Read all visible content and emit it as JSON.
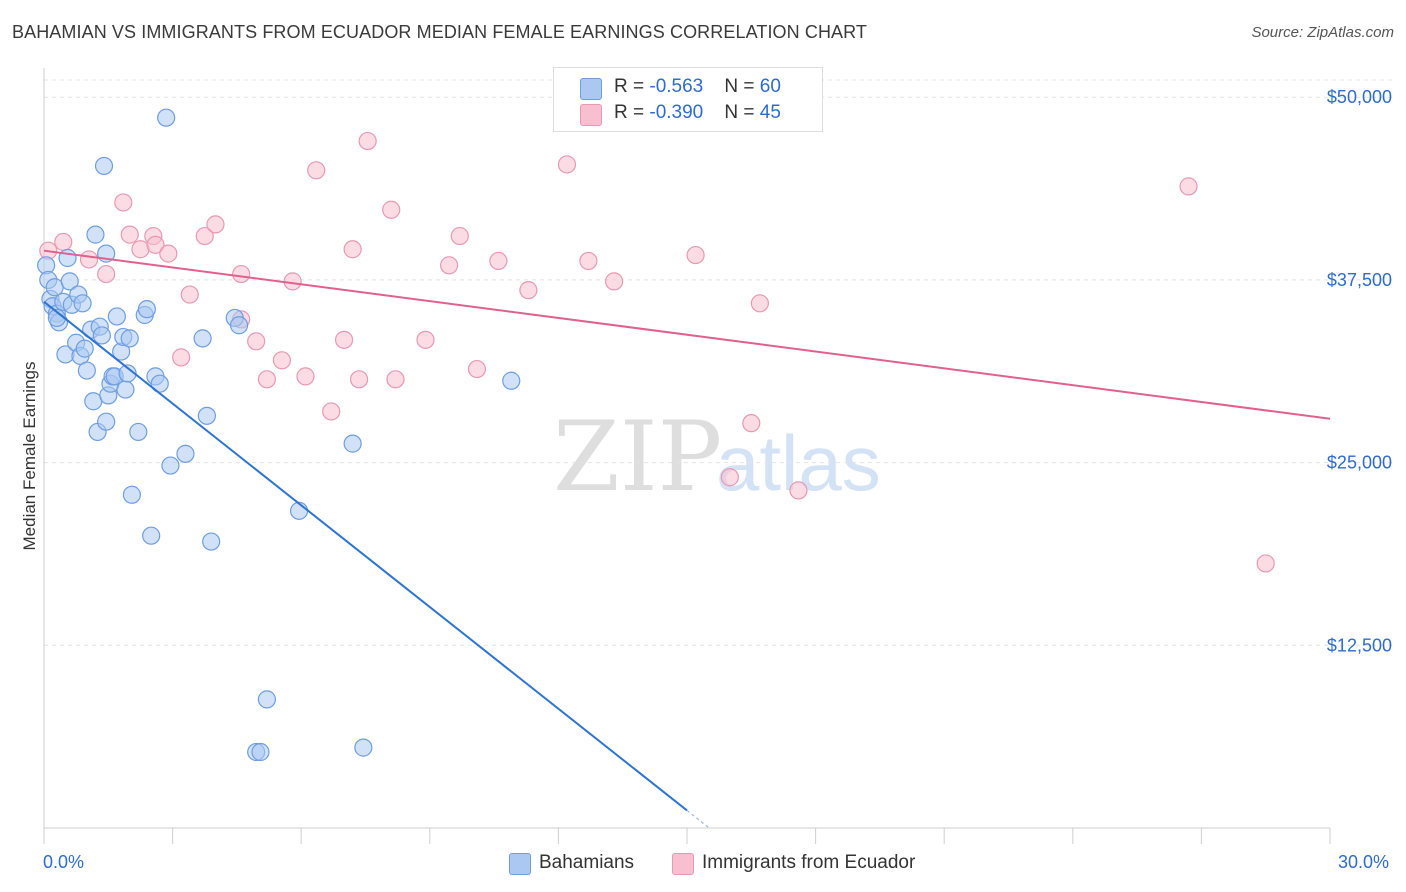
{
  "title": "BAHAMIAN VS IMMIGRANTS FROM ECUADOR MEDIAN FEMALE EARNINGS CORRELATION CHART",
  "source": "Source: ZipAtlas.com",
  "watermark": {
    "zip": "ZIP",
    "atlas": "atlas"
  },
  "legend": {
    "series1": {
      "r_label": "R = ",
      "r_value": "-0.563",
      "n_label": "N = ",
      "n_value": "60"
    },
    "series2": {
      "r_label": "R = ",
      "r_value": "-0.390",
      "n_label": "N = ",
      "n_value": "45"
    }
  },
  "bottom_legend": {
    "series1": "Bahamians",
    "series2": "Immigrants from Ecuador"
  },
  "x_axis": {
    "min_label": "0.0%",
    "max_label": "30.0%"
  },
  "chart_data": {
    "type": "scatter",
    "title": "BAHAMIAN VS IMMIGRANTS FROM ECUADOR MEDIAN FEMALE EARNINGS CORRELATION CHART",
    "xlabel": "",
    "ylabel": "Median Female Earnings",
    "xlim": [
      0,
      30
    ],
    "ylim": [
      0,
      52000
    ],
    "x_unit": "%",
    "y_ticks": [
      12500,
      25000,
      37500,
      50000
    ],
    "y_tick_labels": [
      "$12,500",
      "$25,000",
      "$37,500",
      "$50,000"
    ],
    "grid": true,
    "legend_position": "top-center",
    "colors": {
      "series1_fill": "#aac8f2",
      "series1_stroke": "#6f9ee0",
      "series1_line": "#2f74d0",
      "series2_fill": "#f7bfd0",
      "series2_stroke": "#e899b3",
      "series2_line": "#e0608e",
      "axis_label": "#2f6bcf"
    },
    "series": [
      {
        "name": "Bahamians",
        "trend": {
          "x0": 0.0,
          "y0": 36000,
          "x1": 15.0,
          "y1": 1200
        },
        "points": [
          [
            0.05,
            38500
          ],
          [
            0.1,
            37500
          ],
          [
            0.15,
            36200
          ],
          [
            0.2,
            35700
          ],
          [
            0.25,
            37000
          ],
          [
            0.3,
            35200
          ],
          [
            0.35,
            34600
          ],
          [
            0.45,
            36000
          ],
          [
            0.5,
            32400
          ],
          [
            0.55,
            39000
          ],
          [
            0.6,
            37400
          ],
          [
            0.65,
            35800
          ],
          [
            0.75,
            33200
          ],
          [
            0.8,
            36500
          ],
          [
            0.85,
            32300
          ],
          [
            0.9,
            35900
          ],
          [
            0.95,
            32800
          ],
          [
            1.0,
            31300
          ],
          [
            1.1,
            34100
          ],
          [
            1.15,
            29200
          ],
          [
            1.2,
            40600
          ],
          [
            1.25,
            27100
          ],
          [
            1.3,
            34300
          ],
          [
            1.35,
            33700
          ],
          [
            1.4,
            45300
          ],
          [
            1.45,
            27800
          ],
          [
            1.5,
            29600
          ],
          [
            1.55,
            30400
          ],
          [
            1.6,
            30900
          ],
          [
            1.65,
            30900
          ],
          [
            1.7,
            35000
          ],
          [
            1.8,
            32600
          ],
          [
            1.85,
            33600
          ],
          [
            1.9,
            30000
          ],
          [
            1.95,
            31100
          ],
          [
            2.0,
            33500
          ],
          [
            2.05,
            22800
          ],
          [
            2.2,
            27100
          ],
          [
            2.35,
            35100
          ],
          [
            2.4,
            35500
          ],
          [
            2.5,
            20000
          ],
          [
            2.6,
            30900
          ],
          [
            2.7,
            30400
          ],
          [
            2.85,
            48600
          ],
          [
            2.95,
            24800
          ],
          [
            3.3,
            25600
          ],
          [
            3.7,
            33500
          ],
          [
            3.8,
            28200
          ],
          [
            3.9,
            19600
          ],
          [
            4.45,
            34900
          ],
          [
            4.55,
            34400
          ],
          [
            4.95,
            5200
          ],
          [
            5.05,
            5200
          ],
          [
            5.2,
            8800
          ],
          [
            5.95,
            21700
          ],
          [
            7.2,
            26300
          ],
          [
            7.45,
            5500
          ],
          [
            10.9,
            30600
          ],
          [
            1.45,
            39300
          ],
          [
            0.3,
            34900
          ]
        ]
      },
      {
        "name": "Immigrants from Ecuador",
        "trend": {
          "x0": 0.0,
          "y0": 39500,
          "x1": 30.0,
          "y1": 28000
        },
        "points": [
          [
            0.1,
            39500
          ],
          [
            0.45,
            40100
          ],
          [
            1.05,
            38900
          ],
          [
            1.45,
            37900
          ],
          [
            1.85,
            42800
          ],
          [
            2.0,
            40600
          ],
          [
            2.25,
            39600
          ],
          [
            2.55,
            40500
          ],
          [
            2.6,
            39900
          ],
          [
            2.9,
            39300
          ],
          [
            3.2,
            32200
          ],
          [
            3.4,
            36500
          ],
          [
            3.75,
            40500
          ],
          [
            4.0,
            41300
          ],
          [
            4.6,
            34800
          ],
          [
            4.6,
            37900
          ],
          [
            4.95,
            33300
          ],
          [
            5.2,
            30700
          ],
          [
            5.55,
            32000
          ],
          [
            5.8,
            37400
          ],
          [
            6.1,
            30900
          ],
          [
            6.35,
            45000
          ],
          [
            6.7,
            28500
          ],
          [
            7.0,
            33400
          ],
          [
            7.2,
            39600
          ],
          [
            7.35,
            30700
          ],
          [
            7.55,
            47000
          ],
          [
            8.1,
            42300
          ],
          [
            8.2,
            30700
          ],
          [
            8.9,
            33400
          ],
          [
            9.45,
            38500
          ],
          [
            9.7,
            40500
          ],
          [
            10.1,
            31400
          ],
          [
            10.6,
            38800
          ],
          [
            11.3,
            36800
          ],
          [
            12.2,
            45400
          ],
          [
            12.7,
            38800
          ],
          [
            13.3,
            37400
          ],
          [
            15.2,
            39200
          ],
          [
            16.0,
            24000
          ],
          [
            16.5,
            27700
          ],
          [
            16.7,
            35900
          ],
          [
            17.6,
            23100
          ],
          [
            26.7,
            43900
          ],
          [
            28.5,
            18100
          ]
        ]
      }
    ]
  }
}
